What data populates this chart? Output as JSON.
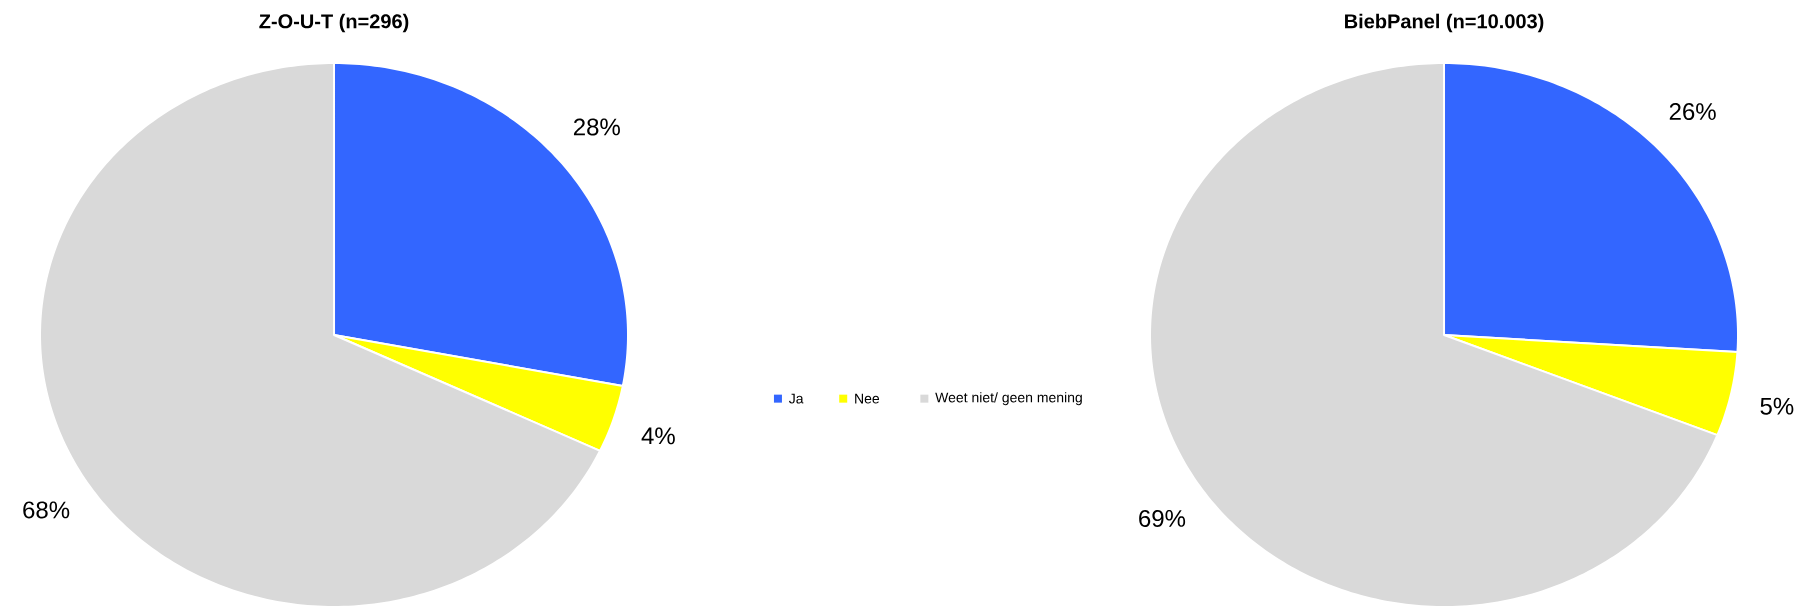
{
  "chart_data": [
    {
      "type": "pie",
      "title": "Z-O-U-T (n=296)",
      "categories": [
        "Ja",
        "Nee",
        "Weet niet/ geen mening"
      ],
      "values": [
        28,
        4,
        68
      ],
      "colors": [
        "#3366ff",
        "#ffff00",
        "#d9d9d9"
      ],
      "value_labels": [
        "28%",
        "4%",
        "68%"
      ],
      "legend": "right"
    },
    {
      "type": "pie",
      "title": "BiebPanel (n=10.003)",
      "categories": [
        null,
        null,
        null
      ],
      "values": [
        26,
        5,
        69
      ],
      "colors": [
        "#3366ff",
        "#ffff00",
        "#d9d9d9"
      ],
      "value_labels": [
        "26%",
        "5%",
        "69%"
      ],
      "legend": false
    }
  ]
}
